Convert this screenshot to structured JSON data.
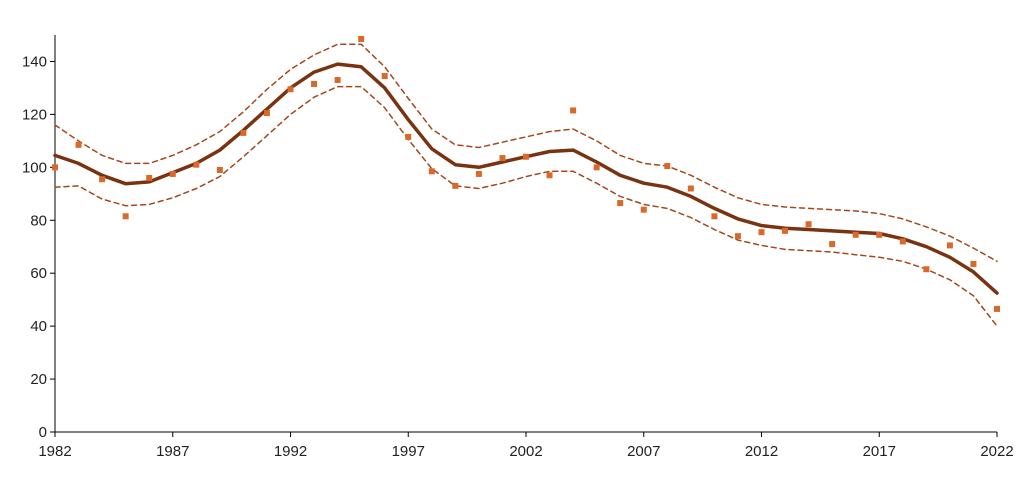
{
  "chart_data": {
    "type": "line",
    "title": "",
    "xlabel": "",
    "ylabel": "",
    "xlim": [
      1982,
      2022
    ],
    "ylim": [
      0,
      150
    ],
    "x_ticks": [
      1982,
      1987,
      1992,
      1997,
      2002,
      2007,
      2012,
      2017,
      2022
    ],
    "y_ticks": [
      0,
      20,
      40,
      60,
      80,
      100,
      120,
      140
    ],
    "grid": false,
    "legend": "none",
    "colors": {
      "trend": "#7a3310",
      "band": "#a3481a",
      "points": "#d9692a",
      "axis": "#000000"
    },
    "x": [
      1982,
      1983,
      1984,
      1985,
      1986,
      1987,
      1988,
      1989,
      1990,
      1991,
      1992,
      1993,
      1994,
      1995,
      1996,
      1997,
      1998,
      1999,
      2000,
      2001,
      2002,
      2003,
      2004,
      2005,
      2006,
      2007,
      2008,
      2009,
      2010,
      2011,
      2012,
      2013,
      2014,
      2015,
      2016,
      2017,
      2018,
      2019,
      2020,
      2021,
      2022
    ],
    "series": [
      {
        "role": "observed",
        "style": "markers",
        "values": [
          100.0,
          108.5,
          95.5,
          81.5,
          96.0,
          97.5,
          101.0,
          99.0,
          113.0,
          120.5,
          129.5,
          131.5,
          133.0,
          148.5,
          134.5,
          111.5,
          98.5,
          93.0,
          97.5,
          103.5,
          104.0,
          97.0,
          121.5,
          100.0,
          86.5,
          84.0,
          100.5,
          92.0,
          81.5,
          74.0,
          75.5,
          76.0,
          78.5,
          71.0,
          74.5,
          74.5,
          72.0,
          61.5,
          70.5,
          63.5,
          46.5
        ]
      },
      {
        "role": "trend",
        "style": "solid",
        "values": [
          104.5,
          101.5,
          97.0,
          93.8,
          94.5,
          98.0,
          101.5,
          106.5,
          114.0,
          122.0,
          130.0,
          136.0,
          139.0,
          138.0,
          130.0,
          118.0,
          107.0,
          101.0,
          100.0,
          102.0,
          104.0,
          106.0,
          106.5,
          102.0,
          97.0,
          94.0,
          92.5,
          89.0,
          84.5,
          80.5,
          78.0,
          77.0,
          76.5,
          76.0,
          75.5,
          75.0,
          73.0,
          70.0,
          66.0,
          60.5,
          52.5
        ]
      },
      {
        "role": "upper_band",
        "style": "dashed",
        "values": [
          116.0,
          110.0,
          104.5,
          101.5,
          101.5,
          104.5,
          108.5,
          113.5,
          121.0,
          129.5,
          137.0,
          142.5,
          146.5,
          146.5,
          138.0,
          126.0,
          114.5,
          108.5,
          107.5,
          109.5,
          111.5,
          113.5,
          114.5,
          110.0,
          104.5,
          101.5,
          100.5,
          97.0,
          92.5,
          88.5,
          86.0,
          85.0,
          84.5,
          84.0,
          83.5,
          82.5,
          80.5,
          77.5,
          74.0,
          69.5,
          64.5
        ]
      },
      {
        "role": "lower_band",
        "style": "dashed",
        "values": [
          92.5,
          93.0,
          88.0,
          85.5,
          86.0,
          88.5,
          92.0,
          96.5,
          104.0,
          112.0,
          120.0,
          126.5,
          130.5,
          130.5,
          122.5,
          110.5,
          99.5,
          93.0,
          92.0,
          94.0,
          96.5,
          98.5,
          98.5,
          94.0,
          89.0,
          86.0,
          84.5,
          81.0,
          76.5,
          72.5,
          70.5,
          69.0,
          68.5,
          68.0,
          67.0,
          66.0,
          64.5,
          61.5,
          57.5,
          51.5,
          40.0
        ]
      }
    ]
  }
}
